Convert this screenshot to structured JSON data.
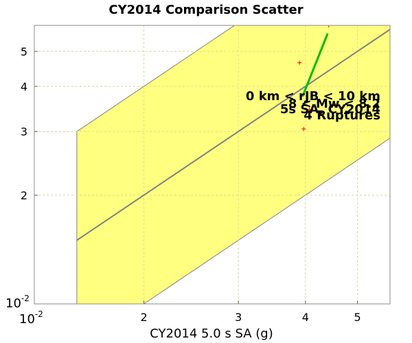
{
  "chart_data": {
    "type": "scatter",
    "title": "CY2014 Comparison Scatter",
    "xlabel": "CY2014 5.0 s SA (g)",
    "ylabel": "",
    "xlim": [
      1.25,
      5.75
    ],
    "ylim": [
      1.0,
      5.9
    ],
    "log_x": true,
    "log_y": true,
    "grid": true,
    "x_ticks": [
      2,
      3,
      4,
      5
    ],
    "y_ticks": [
      2,
      3,
      4,
      5
    ],
    "corner_labels": {
      "x_min": {
        "base": "10",
        "exp": "-2"
      },
      "y_min": {
        "base": "10",
        "exp": "-2"
      }
    },
    "band": {
      "x_start": 1.5,
      "factor": 2.0,
      "color": "#ffff80"
    },
    "one_to_one_line": {
      "color": "#808080"
    },
    "series": [
      {
        "type": "points",
        "marker": "+",
        "color": "#ff0000",
        "points": [
          [
            3.9,
            4.65
          ],
          [
            4.42,
            5.9
          ],
          [
            3.97,
            3.05
          ],
          [
            4.07,
            3.45
          ]
        ]
      },
      {
        "type": "line",
        "color": "#00bb00",
        "points": [
          [
            3.95,
            3.75
          ],
          [
            4.4,
            5.6
          ]
        ]
      }
    ],
    "annotations": [
      "0 km < rJB < 10 km",
      "8 < Mw < 8.2",
      "5s SA, CY2014",
      "4 Ruptures"
    ]
  }
}
